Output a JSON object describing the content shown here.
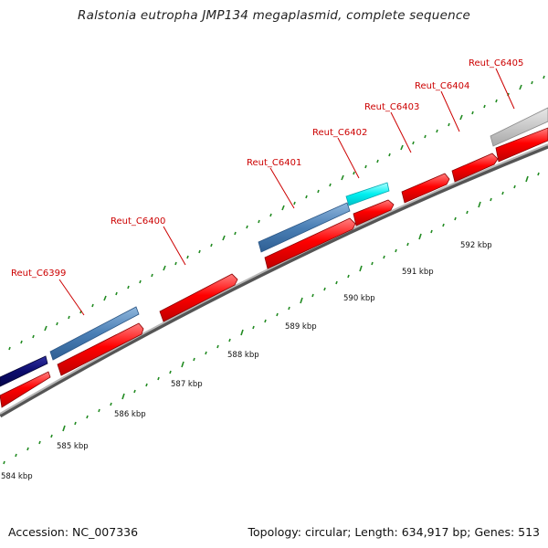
{
  "title": "Ralstonia eutropha JMP134 megaplasmid, complete sequence",
  "accession": "Accession: NC_007336",
  "summary": "Topology: circular; Length: 634,917 bp; Genes: 513",
  "colors": {
    "gene_label": "#cc0000",
    "forward_gene": "#ff0000",
    "backbone": "#8c8c8c",
    "tick": "#228b22",
    "steelblue": "#4a7fb5",
    "navy": "#0b0b6e",
    "cyan": "#00f0f0",
    "gray": "#c8c8c8"
  },
  "gene_labels": [
    {
      "name": "gene-label-reut-c6399",
      "text": "Reut_C6399"
    },
    {
      "name": "gene-label-reut-c6400",
      "text": "Reut_C6400"
    },
    {
      "name": "gene-label-reut-c6401",
      "text": "Reut_C6401"
    },
    {
      "name": "gene-label-reut-c6402",
      "text": "Reut_C6402"
    },
    {
      "name": "gene-label-reut-c6403",
      "text": "Reut_C6403"
    },
    {
      "name": "gene-label-reut-c6404",
      "text": "Reut_C6404"
    },
    {
      "name": "gene-label-reut-c6405",
      "text": "Reut_C6405"
    }
  ],
  "kbp_labels": [
    {
      "name": "kbp-label-584",
      "text": "584 kbp"
    },
    {
      "name": "kbp-label-585",
      "text": "585 kbp"
    },
    {
      "name": "kbp-label-586",
      "text": "586 kbp"
    },
    {
      "name": "kbp-label-587",
      "text": "587 kbp"
    },
    {
      "name": "kbp-label-588",
      "text": "588 kbp"
    },
    {
      "name": "kbp-label-589",
      "text": "589 kbp"
    },
    {
      "name": "kbp-label-590",
      "text": "590 kbp"
    },
    {
      "name": "kbp-label-591",
      "text": "591 kbp"
    },
    {
      "name": "kbp-label-592",
      "text": "592 kbp"
    }
  ]
}
